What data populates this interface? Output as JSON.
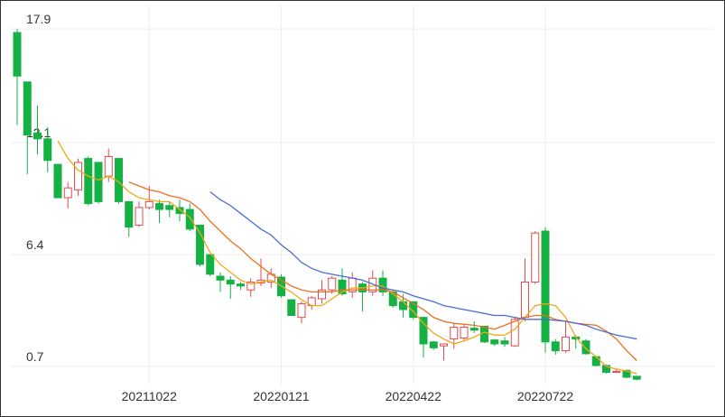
{
  "chart_data": {
    "type": "candlestick",
    "categories": [
      null,
      null,
      null,
      null,
      null,
      null,
      null,
      null,
      null,
      null,
      null,
      null,
      null,
      "20211022",
      null,
      null,
      null,
      null,
      null,
      null,
      null,
      null,
      null,
      null,
      null,
      null,
      "20220121",
      null,
      null,
      null,
      null,
      null,
      null,
      null,
      null,
      null,
      null,
      null,
      null,
      "20220422",
      null,
      null,
      null,
      null,
      null,
      null,
      null,
      null,
      null,
      null,
      null,
      null,
      "20220722",
      null,
      null,
      null,
      null,
      null,
      null,
      null,
      null,
      null
    ],
    "open": [
      17.72,
      15.2,
      12.6,
      12.3,
      11.0,
      9.3,
      9.7,
      11.3,
      11.1,
      10.4,
      11.3,
      9.1,
      7.9,
      8.8,
      9.0,
      8.9,
      8.8,
      8.7,
      7.9,
      6.4,
      5.3,
      5.1,
      4.9,
      4.6,
      4.95,
      5.0,
      5.25,
      4.1,
      3.2,
      3.8,
      4.15,
      4.6,
      5.1,
      4.5,
      4.9,
      4.5,
      5.2,
      4.5,
      4.0,
      4.0,
      3.2,
      1.95,
      1.75,
      2.1,
      2.15,
      2.65,
      2.75,
      2.05,
      2.0,
      1.75,
      3.2,
      5.0,
      7.6,
      1.95,
      1.5,
      2.2,
      2.0,
      1.2,
      0.75,
      0.4,
      0.5,
      0.2
    ],
    "high": [
      17.9,
      15.2,
      14.0,
      12.9,
      11.0,
      10.1,
      11.3,
      11.4,
      11.1,
      11.8,
      11.3,
      9.1,
      9.1,
      9.9,
      9.2,
      9.1,
      9.2,
      9.0,
      7.9,
      6.4,
      5.5,
      5.3,
      5.0,
      5.2,
      6.2,
      5.7,
      5.4,
      4.1,
      4.0,
      4.3,
      5.1,
      5.3,
      5.7,
      5.5,
      5.0,
      5.6,
      5.6,
      4.6,
      4.4,
      4.0,
      3.2,
      2.0,
      1.85,
      2.9,
      2.85,
      3.0,
      2.75,
      2.1,
      2.2,
      3.2,
      6.2,
      7.6,
      7.8,
      2.1,
      3.0,
      2.3,
      2.1,
      1.2,
      0.8,
      0.6,
      0.55,
      0.2
    ],
    "low": [
      13.0,
      10.5,
      11.5,
      10.6,
      9.3,
      8.75,
      9.4,
      8.9,
      9.0,
      10.1,
      9.0,
      7.3,
      7.8,
      8.7,
      8.0,
      8.3,
      8.1,
      7.6,
      5.8,
      5.3,
      4.5,
      4.15,
      4.6,
      4.25,
      4.8,
      4.7,
      4.2,
      3.3,
      2.9,
      3.6,
      3.9,
      4.4,
      4.3,
      4.2,
      3.5,
      4.3,
      4.3,
      3.7,
      3.2,
      3.1,
      1.15,
      1.55,
      1.0,
      1.6,
      2.0,
      2.4,
      1.9,
      1.75,
      1.7,
      1.7,
      3.0,
      4.9,
      1.4,
      1.3,
      1.4,
      1.6,
      1.3,
      0.7,
      0.35,
      0.4,
      0.1,
      0.0
    ],
    "close": [
      15.5,
      12.5,
      12.3,
      11.2,
      9.3,
      9.8,
      11.1,
      9.0,
      9.1,
      11.4,
      9.1,
      7.8,
      8.8,
      9.1,
      8.7,
      8.7,
      8.5,
      7.7,
      5.9,
      5.4,
      5.1,
      4.9,
      4.8,
      5.0,
      5.1,
      5.4,
      4.3,
      3.3,
      3.9,
      4.2,
      4.6,
      5.2,
      4.4,
      5.2,
      4.5,
      5.2,
      4.5,
      3.8,
      3.6,
      3.2,
      1.85,
      1.65,
      1.85,
      2.7,
      2.7,
      2.55,
      1.95,
      1.85,
      1.85,
      3.1,
      5.0,
      7.5,
      1.95,
      1.5,
      2.2,
      2.1,
      1.35,
      0.75,
      0.4,
      0.45,
      0.15,
      0.05
    ],
    "up_color": "#e5484d",
    "down_color": "#14b143",
    "series": [
      {
        "color": "#f0a818",
        "values": [
          null,
          null,
          null,
          null,
          12.2,
          11.3,
          10.7,
          10.4,
          10.2,
          10.4,
          10.1,
          9.6,
          9.3,
          9.2,
          9.1,
          9.1,
          8.7,
          8.3,
          7.5,
          6.5,
          5.9,
          5.5,
          5.1,
          4.9,
          5.0,
          5.1,
          4.8,
          4.5,
          4.1,
          3.8,
          3.8,
          4.15,
          4.5,
          4.7,
          4.7,
          4.8,
          4.8,
          4.4,
          4.0,
          3.5,
          2.9,
          2.4,
          2.1,
          1.85,
          2.0,
          2.2,
          2.45,
          2.3,
          2.3,
          2.6,
          3.2,
          3.8,
          3.9,
          3.8,
          3.2,
          2.2,
          1.6,
          1.2,
          0.7,
          0.56,
          0.47,
          0.33
        ]
      },
      {
        "color": "#e8711f",
        "values": [
          null,
          null,
          null,
          null,
          null,
          null,
          null,
          null,
          null,
          null,
          null,
          10.1,
          9.9,
          9.7,
          9.6,
          9.4,
          9.3,
          9.1,
          8.7,
          8.1,
          7.6,
          7.1,
          6.7,
          6.2,
          5.8,
          5.4,
          5.1,
          4.8,
          4.6,
          4.5,
          4.5,
          4.5,
          4.6,
          4.6,
          4.6,
          4.6,
          4.6,
          4.5,
          4.2,
          3.9,
          3.6,
          3.2,
          3.0,
          2.9,
          2.85,
          2.8,
          2.7,
          2.6,
          2.8,
          3.0,
          3.2,
          3.3,
          3.3,
          3.1,
          3.0,
          2.9,
          2.85,
          2.8,
          2.5,
          2.1,
          1.5,
          1.0
        ]
      },
      {
        "color": "#4a6bd6",
        "values": [
          null,
          null,
          null,
          null,
          null,
          null,
          null,
          null,
          null,
          null,
          null,
          null,
          null,
          null,
          null,
          null,
          null,
          null,
          null,
          9.6,
          9.2,
          8.9,
          8.5,
          8.1,
          7.7,
          7.4,
          6.9,
          6.5,
          6.0,
          5.7,
          5.5,
          5.4,
          5.3,
          5.2,
          5.1,
          4.9,
          4.7,
          4.6,
          4.5,
          4.3,
          4.15,
          4.0,
          3.8,
          3.7,
          3.6,
          3.5,
          3.4,
          3.3,
          3.3,
          3.2,
          3.1,
          3.1,
          3.1,
          3.05,
          3.0,
          2.9,
          2.8,
          2.6,
          2.45,
          2.3,
          2.2,
          2.1
        ]
      }
    ],
    "ylim": [
      -0.22,
      19.1
    ],
    "yticks": [
      0.7,
      6.4,
      12.1,
      17.9
    ],
    "grid": true
  }
}
